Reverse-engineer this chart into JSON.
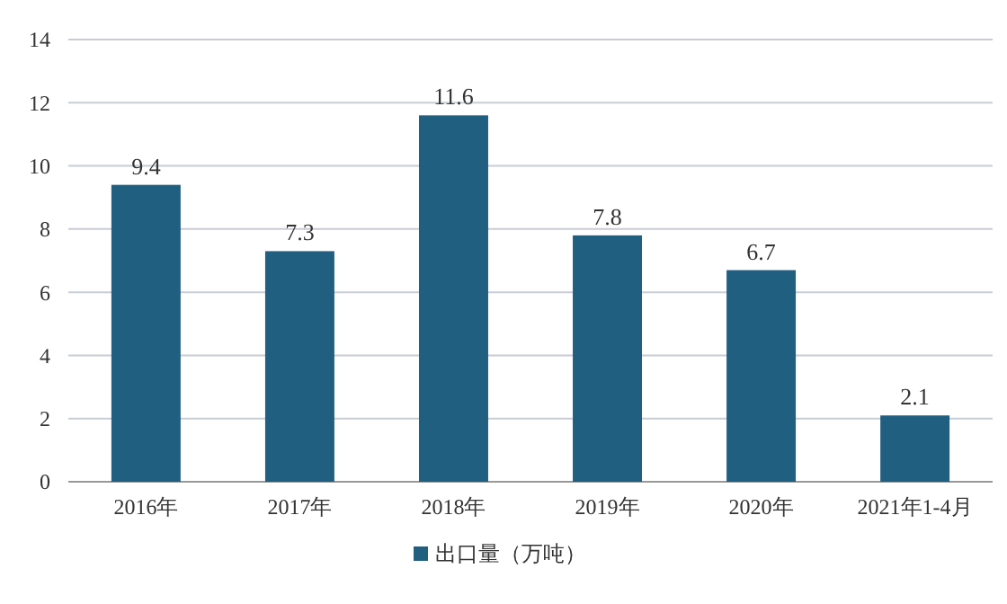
{
  "chart_data": {
    "type": "bar",
    "categories": [
      "2016年",
      "2017年",
      "2018年",
      "2019年",
      "2020年",
      "2021年1-4月"
    ],
    "series": [
      {
        "name": "出口量（万吨）",
        "color": "#215f80",
        "values": [
          9.4,
          7.3,
          11.6,
          7.8,
          6.7,
          2.1
        ]
      }
    ],
    "ylim": [
      0,
      14
    ],
    "yticks": [
      0,
      2,
      4,
      6,
      8,
      10,
      12,
      14
    ],
    "grid": "y",
    "legend": "bottom",
    "data_labels": true
  }
}
